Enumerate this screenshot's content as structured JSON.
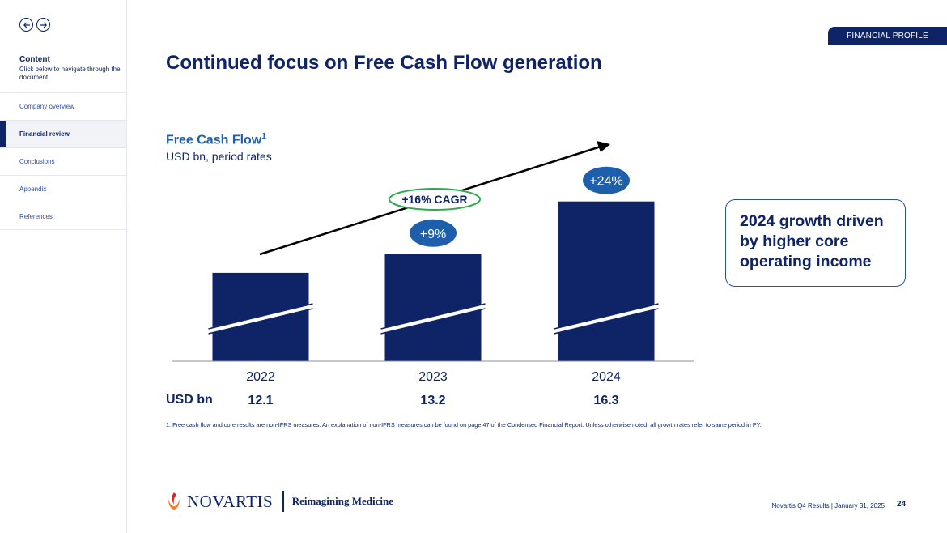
{
  "sidebar": {
    "content_title": "Content",
    "content_sub": "Click below to navigate through the document",
    "items": [
      {
        "label": "Company overview"
      },
      {
        "label": "Financial review"
      },
      {
        "label": "Conclusions"
      },
      {
        "label": "Appendix"
      },
      {
        "label": "References"
      }
    ],
    "active_item": "Financial review"
  },
  "section_tag": "FINANCIAL PROFILE",
  "page_title": "Continued focus on Free Cash Flow generation",
  "chart_header": {
    "title": "Free Cash Flow",
    "title_sup": "1",
    "subtitle": "USD bn, period rates"
  },
  "chart_data": {
    "type": "bar",
    "categories": [
      "2022",
      "2023",
      "2024"
    ],
    "values": [
      12.1,
      13.2,
      16.3
    ],
    "value_row_label": "USD bn",
    "value_labels": [
      "12.1",
      "13.2",
      "16.3"
    ],
    "growth_badges": [
      {
        "category": "2023",
        "label": "+9%"
      },
      {
        "category": "2024",
        "label": "+24%"
      }
    ],
    "trend_annotation": "+16% CAGR",
    "axis_break": true,
    "grid": false,
    "colors": {
      "bar": "#0f2466",
      "badge": "#1d5fab",
      "cagr_border": "#2fa84f"
    }
  },
  "callout": "2024 growth driven by higher core operating income",
  "footnote": "1. Free cash flow and core results are non-IFRS measures. An explanation of non-IFRS measures can be found on page 47 of the Condensed Financial Report. Unless otherwise noted, all growth rates refer to same period in PY.",
  "logo": {
    "name": "NOVARTIS",
    "tagline": "Reimagining Medicine",
    "icon": "novartis-flame-icon"
  },
  "footer": {
    "text": "Novartis Q4 Results | January 31, 2025",
    "page_number": "24"
  },
  "colors": {
    "navy": "#0f2466",
    "accent_blue": "#1d5fab",
    "green": "#2fa84f"
  }
}
